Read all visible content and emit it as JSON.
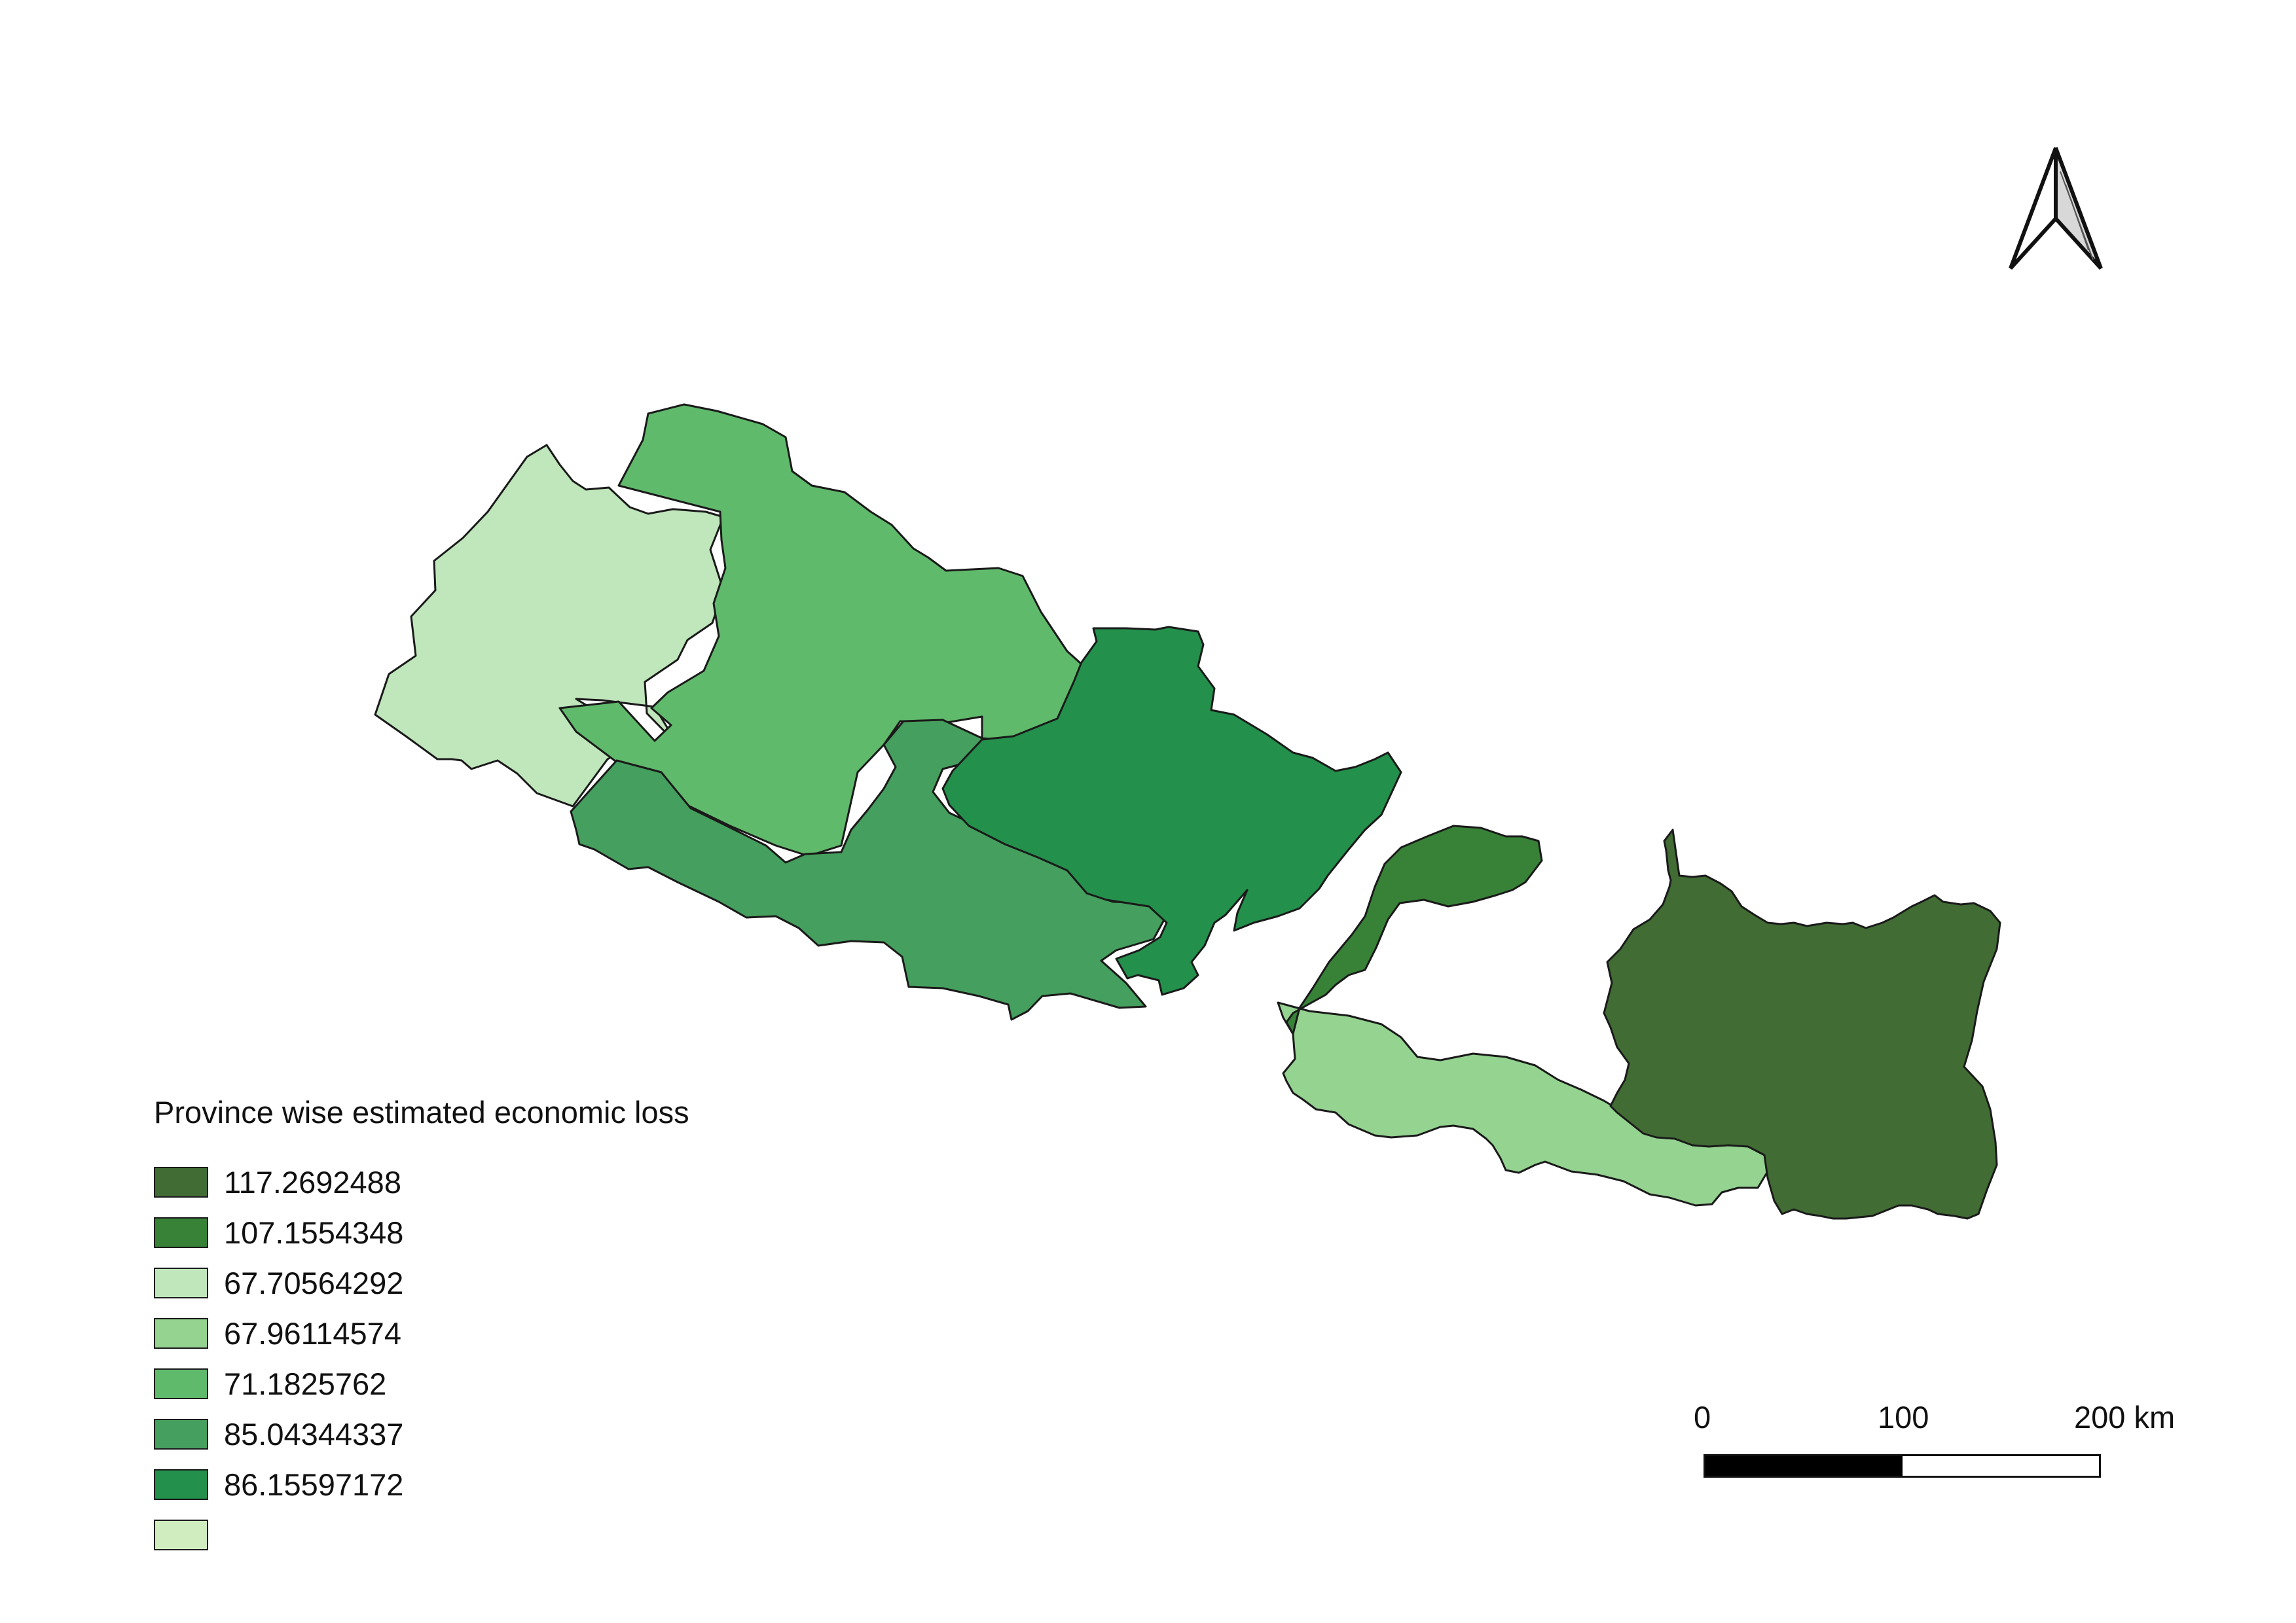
{
  "legend": {
    "title": "Province wise estimated economic loss",
    "items": [
      {
        "label": "117.2692488",
        "color": "#416c34"
      },
      {
        "label": "107.1554348",
        "color": "#388238"
      },
      {
        "label": "67.70564292",
        "color": "#c0e6bc"
      },
      {
        "label": "67.96114574",
        "color": "#95d391"
      },
      {
        "label": "71.1825762",
        "color": "#60ba6c"
      },
      {
        "label": "85.04344337",
        "color": "#459f5e"
      },
      {
        "label": "86.15597172",
        "color": "#23904c"
      },
      {
        "label": "",
        "color": "#d0edc0"
      }
    ]
  },
  "provinces": [
    {
      "value": "67.70564292",
      "color": "#c0e6bc"
    },
    {
      "value": "71.1825762",
      "color": "#60ba6c"
    },
    {
      "value": "85.04344337",
      "color": "#459f5e"
    },
    {
      "value": "86.15597172",
      "color": "#23904c"
    },
    {
      "value": "107.1554348",
      "color": "#388238"
    },
    {
      "value": "67.96114574",
      "color": "#95d391"
    },
    {
      "value": "117.2692488",
      "color": "#416c34"
    }
  ],
  "scale_bar": {
    "labels": [
      "0",
      "100",
      "200 km"
    ],
    "colors": [
      "#000000",
      "#ffffff"
    ]
  },
  "north_arrow": {
    "icon": "north-arrow-icon",
    "color": "#111111"
  }
}
